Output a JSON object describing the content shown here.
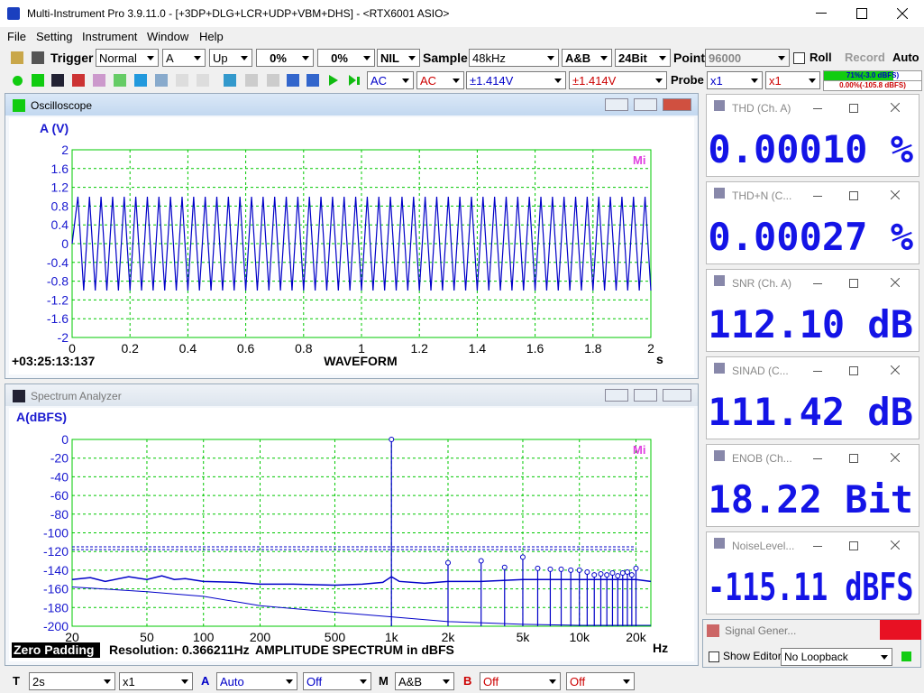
{
  "window": {
    "title": "Multi-Instrument Pro 3.9.11.0   -   [+3DP+DLG+LCR+UDP+VBM+DHS]   -   <RTX6001 ASIO>"
  },
  "menu": [
    "File",
    "Setting",
    "Instrument",
    "Window",
    "Help"
  ],
  "toolbar": {
    "trigger_label": "Trigger",
    "trigger_mode": "Normal",
    "trigger_channel": "A",
    "trigger_edge": "Up",
    "trigger_level": "0%",
    "trigger_delay": "0%",
    "trigger_source": "NIL",
    "sample_label": "Sample",
    "sample_rate": "48kHz",
    "channels": "A&B",
    "bit_depth": "24Bit",
    "point_label": "Point",
    "points": "96000",
    "roll": "Roll",
    "record": "Record",
    "auto": "Auto"
  },
  "toolbar2": {
    "coupling_a": "AC",
    "coupling_b": "AC",
    "range_a": "±1.414V",
    "range_b": "±1.414V",
    "probe_label": "Probe",
    "probe_a": "x1",
    "probe_b": "x1",
    "level_a": {
      "value": 71,
      "label": "71%(-3.0 dBFS)"
    },
    "level_b": {
      "value": 0,
      "label": "0.00%(-105.8 dBFS)"
    }
  },
  "oscilloscope": {
    "title": "Oscilloscope",
    "ylabel": "A (V)",
    "xunit": "s",
    "caption": "WAVEFORM",
    "timestamp": "+03:25:13:137",
    "logo": "Mi",
    "color": "#0000c8",
    "xlim": [
      0,
      2
    ],
    "ylim": [
      -2,
      2
    ],
    "xticks": [
      0,
      0.2,
      0.4,
      0.6,
      0.8,
      1,
      1.2,
      1.4,
      1.6,
      1.8,
      2
    ],
    "yticks": [
      2,
      1.6,
      1.2,
      0.8,
      0.4,
      0,
      -0.4,
      -0.8,
      -1.2,
      -1.6,
      -2
    ],
    "x": [
      0,
      0.02,
      0.04,
      0.06,
      0.08,
      0.1,
      0.12,
      0.14,
      0.16,
      0.18,
      0.2,
      0.22,
      0.24,
      0.26,
      0.28,
      0.3,
      0.32,
      0.34,
      0.36,
      0.38,
      0.4,
      0.42,
      0.44,
      0.46,
      0.48,
      0.5,
      0.52,
      0.54,
      0.56,
      0.58,
      0.6,
      0.62,
      0.64,
      0.66,
      0.68,
      0.7,
      0.72,
      0.74,
      0.76,
      0.78,
      0.8,
      0.82,
      0.84,
      0.86,
      0.88,
      0.9,
      0.92,
      0.94,
      0.96,
      0.98,
      1,
      1.02,
      1.04,
      1.06,
      1.08,
      1.1,
      1.12,
      1.14,
      1.16,
      1.18,
      1.2,
      1.22,
      1.24,
      1.26,
      1.28,
      1.3,
      1.32,
      1.34,
      1.36,
      1.38,
      1.4,
      1.42,
      1.44,
      1.46,
      1.48,
      1.5,
      1.52,
      1.54,
      1.56,
      1.58,
      1.6,
      1.62,
      1.64,
      1.66,
      1.68,
      1.7,
      1.72,
      1.74,
      1.76,
      1.78,
      1.8,
      1.82,
      1.84,
      1.86,
      1.88,
      1.9,
      1.92,
      1.94,
      1.96,
      1.98,
      2
    ],
    "values": [
      0,
      1,
      -1,
      1,
      -1,
      1,
      -1,
      1,
      -1,
      1,
      -1,
      1,
      -1,
      1,
      -1,
      1,
      -1,
      1,
      -1,
      1,
      -1,
      1,
      -1,
      1,
      -1,
      1,
      -1,
      1,
      -1,
      1,
      -1,
      1,
      -1,
      1,
      -1,
      1,
      -1,
      1,
      -1,
      1,
      -1,
      1,
      -1,
      1,
      -1,
      1,
      -1,
      1,
      -1,
      1,
      -1,
      1,
      -1,
      1,
      -1,
      1,
      -1,
      1,
      -1,
      1,
      -1,
      1,
      -1,
      1,
      -1,
      1,
      -1,
      1,
      -1,
      1,
      -1,
      1,
      -1,
      1,
      -1,
      1,
      -1,
      1,
      -1,
      1,
      -1,
      1,
      -1,
      1,
      -1,
      1,
      -1,
      1,
      -1,
      1,
      -1,
      1,
      -1,
      1,
      -1,
      1,
      -1,
      1,
      -1,
      1,
      -1
    ]
  },
  "spectrum": {
    "title": "Spectrum Analyzer",
    "ylabel": "A(dBFS)",
    "xunit": "Hz",
    "caption": "AMPLITUDE SPECTRUM in dBFS",
    "zero_padding": "Zero Padding",
    "resolution": "Resolution: 0.366211Hz",
    "logo": "Mi",
    "color": "#0000c8",
    "log_x": true,
    "xlim": [
      20,
      24000
    ],
    "ylim": [
      -200,
      0
    ],
    "xticks": [
      20,
      50,
      100,
      200,
      500,
      {
        "value": 1000,
        "label": "1k"
      },
      {
        "value": 2000,
        "label": "2k"
      },
      {
        "value": 5000,
        "label": "5k"
      },
      {
        "value": 10000,
        "label": "10k"
      },
      {
        "value": 20000,
        "label": "20k"
      }
    ],
    "yticks": [
      0,
      -20,
      -40,
      -60,
      -80,
      -100,
      -120,
      -140,
      -160,
      -180,
      -200
    ],
    "reference_lines": [
      -115,
      -118
    ],
    "harmonics": {
      "x": [
        1000,
        2000,
        3000,
        4000,
        5000,
        6000,
        7000,
        8000,
        9000,
        10000,
        11000,
        12000,
        13000,
        14000,
        15000,
        16000,
        17000,
        18000,
        19000,
        20000
      ],
      "values": [
        0,
        -132,
        -130,
        -137,
        -126,
        -138,
        -139,
        -139,
        -140,
        -140,
        -142,
        -145,
        -144,
        -145,
        -143,
        -146,
        -143,
        -142,
        -145,
        -138
      ]
    },
    "noise_upper": {
      "x": [
        20,
        25,
        30,
        40,
        50,
        60,
        70,
        80,
        100,
        150,
        200,
        300,
        500,
        700,
        900,
        1000,
        1100,
        1500,
        2000,
        3000,
        5000,
        10000,
        20000,
        24000
      ],
      "values": [
        -150,
        -148,
        -152,
        -147,
        -150,
        -146,
        -150,
        -149,
        -152,
        -153,
        -155,
        -155,
        -156,
        -155,
        -153,
        -147,
        -152,
        -154,
        -152,
        -152,
        -150,
        -150,
        -150,
        -152
      ]
    },
    "noise_lower": {
      "x": [
        20,
        50,
        100,
        200,
        500,
        1000,
        2000,
        5000,
        10000,
        24000
      ],
      "values": [
        -158,
        -163,
        -168,
        -178,
        -185,
        -190,
        -195,
        -198,
        -199,
        -199
      ]
    }
  },
  "readouts": [
    {
      "title": "THD (Ch. A)",
      "value": "0.00010 %"
    },
    {
      "title": "THD+N (C...",
      "value": "0.00027 %"
    },
    {
      "title": "SNR (Ch. A)",
      "value": "112.10 dB"
    },
    {
      "title": "SINAD (C...",
      "value": "111.42 dB"
    },
    {
      "title": "ENOB (Ch...",
      "value": "18.22 Bit"
    },
    {
      "title": "NoiseLevel...",
      "value": "-115.11 dBFS"
    }
  ],
  "signal_generator": {
    "title": "Signal Gener...",
    "show_editor": "Show Editor",
    "loopback": "No Loopback"
  },
  "statusbar": {
    "t_label": "T",
    "timebase": "2s",
    "zoom": "x1",
    "a_label": "A",
    "a_range": "Auto",
    "a_off": "Off",
    "m_label": "M",
    "m_mode": "A&B",
    "b_label": "B",
    "b_range": "Off",
    "b_off": "Off"
  }
}
